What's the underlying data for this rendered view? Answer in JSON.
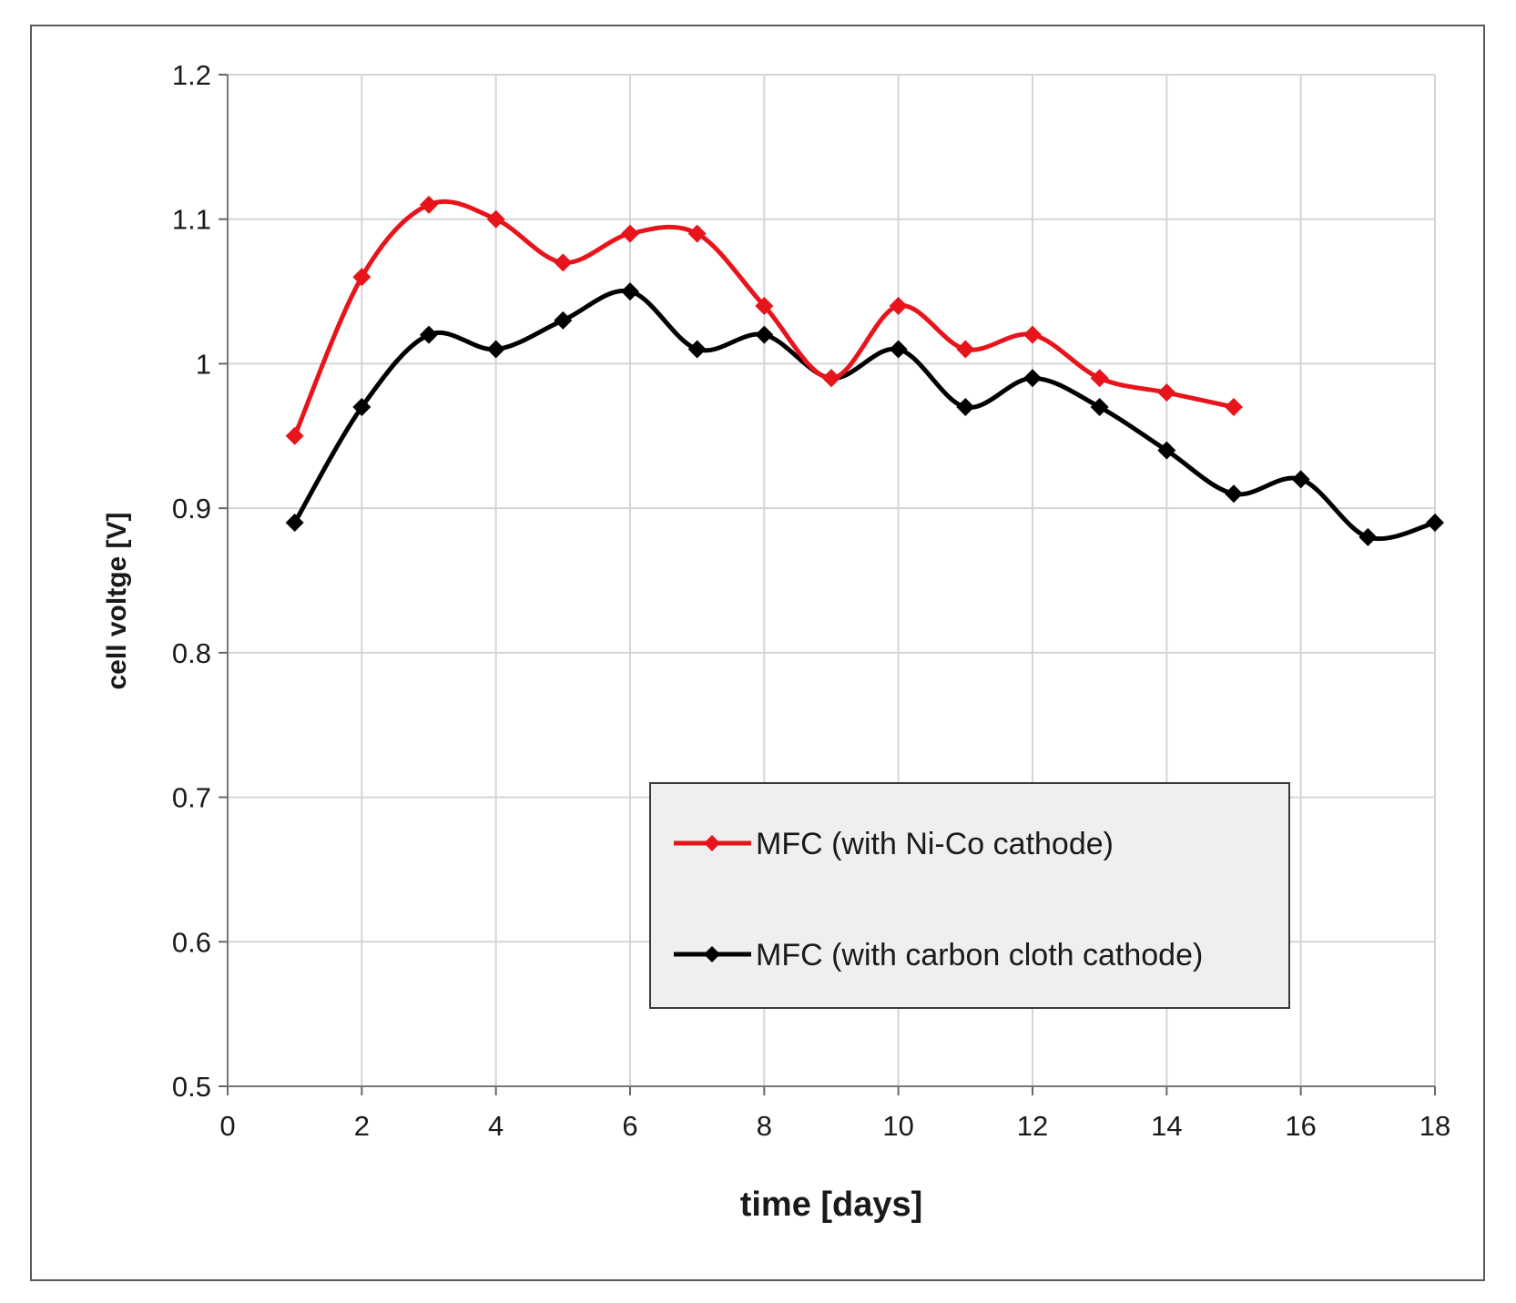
{
  "chart_data": {
    "type": "line",
    "title": "",
    "xlabel": "time [days]",
    "ylabel": "cell voltge [V]",
    "xlim": [
      0,
      18
    ],
    "ylim": [
      0.5,
      1.2
    ],
    "xticks": [
      0,
      2,
      4,
      6,
      8,
      10,
      12,
      14,
      16,
      18
    ],
    "yticks": [
      0.5,
      0.6,
      0.7,
      0.8,
      0.9,
      1,
      1.1,
      1.2
    ],
    "grid": true,
    "legend_position": "lower-right",
    "series": [
      {
        "name": "MFC (with Ni-Co cathode)",
        "color": "#e8141c",
        "x": [
          1,
          2,
          3,
          4,
          5,
          6,
          7,
          8,
          9,
          10,
          11,
          12,
          13,
          14,
          15
        ],
        "values": [
          0.95,
          1.06,
          1.11,
          1.1,
          1.07,
          1.09,
          1.09,
          1.04,
          0.99,
          1.04,
          1.01,
          1.02,
          0.99,
          0.98,
          0.97
        ]
      },
      {
        "name": "MFC (with carbon cloth cathode)",
        "color": "#000000",
        "x": [
          1,
          2,
          3,
          4,
          5,
          6,
          7,
          8,
          9,
          10,
          11,
          12,
          13,
          14,
          15,
          16,
          17,
          18
        ],
        "values": [
          0.89,
          0.97,
          1.02,
          1.01,
          1.03,
          1.05,
          1.01,
          1.02,
          0.99,
          1.01,
          0.97,
          0.99,
          0.97,
          0.94,
          0.91,
          0.92,
          0.88,
          0.89
        ]
      }
    ]
  }
}
